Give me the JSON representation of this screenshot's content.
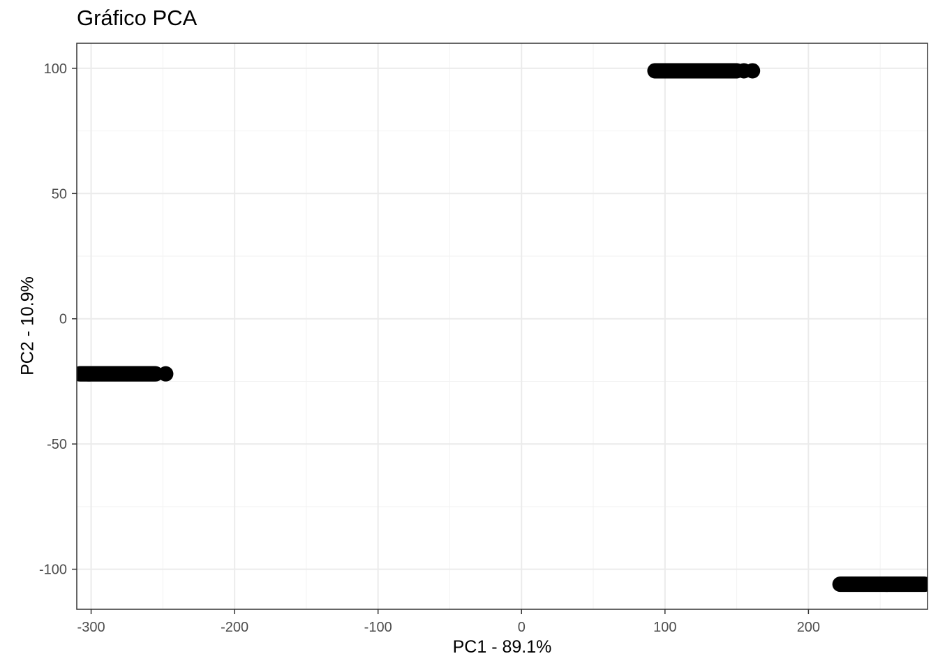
{
  "chart_data": {
    "type": "scatter",
    "title": "Gráfico PCA",
    "xlabel": "PC1 - 89.1%",
    "ylabel": "PC2 - 10.9%",
    "xlim": [
      -310,
      283
    ],
    "ylim": [
      -116,
      110
    ],
    "x_ticks": [
      -300,
      -200,
      -100,
      0,
      100,
      200
    ],
    "x_tick_labels": [
      "-300",
      "-200",
      "-100",
      "0",
      "100",
      "200"
    ],
    "y_ticks": [
      -100,
      -50,
      0,
      50,
      100
    ],
    "y_tick_labels": [
      "-100",
      "-50",
      "0",
      "50",
      "100"
    ],
    "grid": true,
    "marker_color": "#000000",
    "clusters": [
      {
        "y": -22,
        "x_from": -308,
        "x_to": -255,
        "extra_x": [
          -248
        ]
      },
      {
        "y": 99,
        "x_from": 93,
        "x_to": 150,
        "extra_x": [
          155,
          161
        ]
      },
      {
        "y": -106,
        "x_from": 222,
        "x_to": 281,
        "extra_x": []
      }
    ]
  }
}
